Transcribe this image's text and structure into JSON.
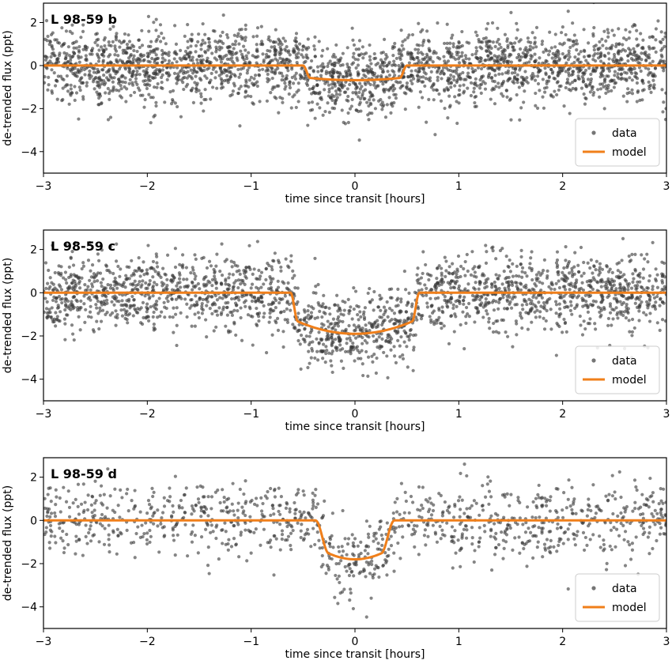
{
  "chart_data": [
    {
      "type": "scatter",
      "title": "L 98-59 b",
      "xlabel": "time since transit [hours]",
      "ylabel": "de-trended flux (ppt)",
      "xlim": [
        -3,
        3
      ],
      "ylim": [
        -5,
        2.9
      ],
      "xticks": [
        -3,
        -2,
        -1,
        0,
        1,
        2,
        3
      ],
      "yticks": [
        2,
        0,
        -2,
        -4
      ],
      "tick_labels_x": [
        "−3",
        "−2",
        "−1",
        "0",
        "1",
        "2",
        "3"
      ],
      "tick_labels_y": [
        "2",
        "0",
        "−2",
        "−4"
      ],
      "legend": {
        "placement": "lower-right",
        "entries": [
          "data",
          "model"
        ]
      },
      "colors": {
        "data": "#3a3a3a",
        "model": "#f07f1a"
      },
      "series": [
        {
          "name": "data",
          "kind": "scatter",
          "count": 2600,
          "seed": 11,
          "noise_sd": 0.85
        },
        {
          "name": "model",
          "kind": "line",
          "depth": 0.68,
          "ingress_start": -0.5,
          "ingress_end": -0.43,
          "egress_start": 0.43,
          "egress_end": 0.5,
          "limb_curvature": 0.15
        }
      ]
    },
    {
      "type": "scatter",
      "title": "L 98-59 c",
      "xlabel": "time since transit [hours]",
      "ylabel": "de-trended flux (ppt)",
      "xlim": [
        -3,
        3
      ],
      "ylim": [
        -5,
        2.9
      ],
      "xticks": [
        -3,
        -2,
        -1,
        0,
        1,
        2,
        3
      ],
      "yticks": [
        2,
        0,
        -2,
        -4
      ],
      "tick_labels_x": [
        "−3",
        "−2",
        "−1",
        "0",
        "1",
        "2",
        "3"
      ],
      "tick_labels_y": [
        "2",
        "0",
        "−2",
        "−4"
      ],
      "legend": {
        "placement": "lower-right",
        "entries": [
          "data",
          "model"
        ]
      },
      "colors": {
        "data": "#3a3a3a",
        "model": "#f07f1a"
      },
      "series": [
        {
          "name": "data",
          "kind": "scatter",
          "count": 2200,
          "seed": 23,
          "noise_sd": 0.85
        },
        {
          "name": "model",
          "kind": "line",
          "depth": 1.9,
          "ingress_start": -0.62,
          "ingress_end": -0.55,
          "egress_start": 0.55,
          "egress_end": 0.62,
          "limb_curvature": 0.3
        }
      ]
    },
    {
      "type": "scatter",
      "title": "L 98-59 d",
      "xlabel": "time since transit [hours]",
      "ylabel": "de-trended flux (ppt)",
      "xlim": [
        -3,
        3
      ],
      "ylim": [
        -5,
        2.9
      ],
      "xticks": [
        -3,
        -2,
        -1,
        0,
        1,
        2,
        3
      ],
      "yticks": [
        2,
        0,
        -2,
        -4
      ],
      "tick_labels_x": [
        "−3",
        "−2",
        "−1",
        "0",
        "1",
        "2",
        "3"
      ],
      "tick_labels_y": [
        "2",
        "0",
        "−2",
        "−4"
      ],
      "legend": {
        "placement": "lower-right",
        "entries": [
          "data",
          "model"
        ]
      },
      "colors": {
        "data": "#3a3a3a",
        "model": "#f07f1a"
      },
      "series": [
        {
          "name": "data",
          "kind": "scatter",
          "count": 1100,
          "seed": 37,
          "noise_sd": 0.85
        },
        {
          "name": "model",
          "kind": "line",
          "depth": 1.8,
          "ingress_start": -0.38,
          "ingress_end": -0.25,
          "egress_start": 0.25,
          "egress_end": 0.38,
          "limb_curvature": 0.15
        }
      ]
    }
  ]
}
